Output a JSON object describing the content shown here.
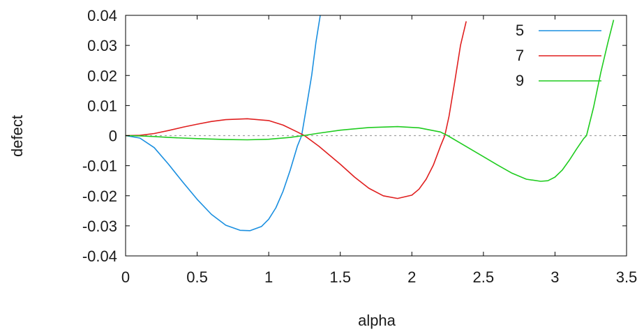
{
  "chart_data": {
    "type": "line",
    "title": "",
    "xlabel": "alpha",
    "ylabel": "defect",
    "xlim": [
      0,
      3.5
    ],
    "ylim": [
      -0.04,
      0.04
    ],
    "xticks": [
      0,
      0.5,
      1,
      1.5,
      2,
      2.5,
      3,
      3.5
    ],
    "xtick_labels": [
      "0",
      "0.5",
      "1",
      "1.5",
      "2",
      "2.5",
      "3",
      "3.5"
    ],
    "yticks": [
      0.04,
      0.03,
      0.02,
      0.01,
      0,
      -0.01,
      -0.02,
      -0.03,
      -0.04
    ],
    "ytick_labels": [
      "0.04",
      "0.03",
      "0.02",
      "0.01",
      "0",
      "-0.01",
      "-0.02",
      "-0.03",
      "-0.04"
    ],
    "grid": false,
    "zero_line": true,
    "legend_position": "top-right",
    "series": [
      {
        "name": "5",
        "color": "#1a8fe0",
        "points": [
          [
            0,
            0
          ],
          [
            0.1,
            -0.0008
          ],
          [
            0.2,
            -0.004
          ],
          [
            0.3,
            -0.0095
          ],
          [
            0.4,
            -0.0155
          ],
          [
            0.5,
            -0.0212
          ],
          [
            0.6,
            -0.0262
          ],
          [
            0.7,
            -0.0298
          ],
          [
            0.8,
            -0.0315
          ],
          [
            0.87,
            -0.0316
          ],
          [
            0.95,
            -0.0302
          ],
          [
            1.0,
            -0.0278
          ],
          [
            1.05,
            -0.024
          ],
          [
            1.1,
            -0.0185
          ],
          [
            1.15,
            -0.0115
          ],
          [
            1.2,
            -0.0035
          ],
          [
            1.23,
            0
          ],
          [
            1.26,
            0.0085
          ],
          [
            1.3,
            0.02
          ],
          [
            1.33,
            0.031
          ],
          [
            1.36,
            0.04
          ]
        ]
      },
      {
        "name": "7",
        "color": "#e01f1f",
        "points": [
          [
            0,
            0
          ],
          [
            0.1,
            0.0001
          ],
          [
            0.2,
            0.0007
          ],
          [
            0.3,
            0.0017
          ],
          [
            0.4,
            0.0028
          ],
          [
            0.5,
            0.0038
          ],
          [
            0.6,
            0.0047
          ],
          [
            0.7,
            0.0053
          ],
          [
            0.85,
            0.0056
          ],
          [
            1.0,
            0.005
          ],
          [
            1.1,
            0.0035
          ],
          [
            1.2,
            0.0012
          ],
          [
            1.25,
            0
          ],
          [
            1.35,
            -0.0035
          ],
          [
            1.5,
            -0.0095
          ],
          [
            1.6,
            -0.0138
          ],
          [
            1.7,
            -0.0175
          ],
          [
            1.8,
            -0.02
          ],
          [
            1.9,
            -0.0209
          ],
          [
            2.0,
            -0.0198
          ],
          [
            2.05,
            -0.0178
          ],
          [
            2.1,
            -0.0145
          ],
          [
            2.15,
            -0.0098
          ],
          [
            2.2,
            -0.0035
          ],
          [
            2.23,
            0
          ],
          [
            2.26,
            0.0065
          ],
          [
            2.3,
            0.018
          ],
          [
            2.34,
            0.03
          ],
          [
            2.38,
            0.038
          ]
        ]
      },
      {
        "name": "9",
        "color": "#1fcc1f",
        "points": [
          [
            0,
            0
          ],
          [
            0.1,
            -0.0001
          ],
          [
            0.2,
            -0.0003
          ],
          [
            0.3,
            -0.0006
          ],
          [
            0.5,
            -0.001
          ],
          [
            0.7,
            -0.0013
          ],
          [
            0.85,
            -0.0014
          ],
          [
            1.0,
            -0.0012
          ],
          [
            1.15,
            -0.0006
          ],
          [
            1.24,
            0
          ],
          [
            1.35,
            0.0008
          ],
          [
            1.5,
            0.0018
          ],
          [
            1.7,
            0.0027
          ],
          [
            1.9,
            0.003
          ],
          [
            2.05,
            0.0026
          ],
          [
            2.2,
            0.0012
          ],
          [
            2.25,
            0
          ],
          [
            2.35,
            -0.0028
          ],
          [
            2.5,
            -0.007
          ],
          [
            2.6,
            -0.0098
          ],
          [
            2.7,
            -0.0125
          ],
          [
            2.8,
            -0.0145
          ],
          [
            2.9,
            -0.0152
          ],
          [
            2.95,
            -0.015
          ],
          [
            3.0,
            -0.0138
          ],
          [
            3.05,
            -0.0115
          ],
          [
            3.1,
            -0.0082
          ],
          [
            3.15,
            -0.0045
          ],
          [
            3.2,
            -0.001
          ],
          [
            3.22,
            0
          ],
          [
            3.27,
            0.0095
          ],
          [
            3.32,
            0.021
          ],
          [
            3.37,
            0.031
          ],
          [
            3.41,
            0.0385
          ]
        ]
      }
    ]
  }
}
